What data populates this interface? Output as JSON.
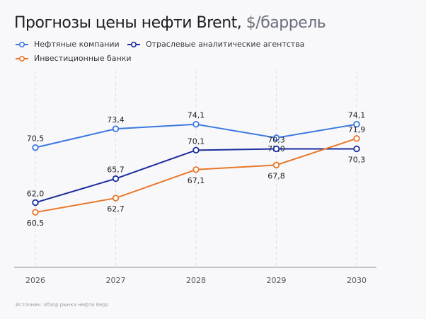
{
  "title": "Прогнозы цены нефти Brent,",
  "unit": "$/баррель",
  "source": "Источник: обзор рынка нефти Kepp",
  "chart_data": {
    "type": "line",
    "title": "Прогнозы цены нефти Brent, $/баррель",
    "categories": [
      "2026",
      "2027",
      "2028",
      "2029",
      "2030"
    ],
    "ylim": [
      52,
      78
    ],
    "grid": "vertical dashed",
    "legend_position": "top-left",
    "series": [
      {
        "name": "Нефтяные компании",
        "color": "#3b78e0",
        "values": [
          70.5,
          73.4,
          74.1,
          72.0,
          74.1
        ],
        "labels": [
          "70,5",
          "73,4",
          "74,1",
          "72,0",
          "74,1"
        ],
        "label_pos": [
          "above",
          "above",
          "above",
          "below",
          "above"
        ]
      },
      {
        "name": "Отраслевые аналитические агентства",
        "color": "#1a2d9c",
        "values": [
          62.0,
          65.7,
          70.1,
          70.3,
          70.3
        ],
        "labels": [
          "62,0",
          "65,7",
          "70,1",
          "70,3",
          "70,3"
        ],
        "label_pos": [
          "above",
          "above",
          "above",
          "above",
          "below"
        ]
      },
      {
        "name": "Инвестиционные банки",
        "color": "#e8782a",
        "values": [
          60.5,
          62.7,
          67.1,
          67.8,
          71.9
        ],
        "labels": [
          "60,5",
          "62,7",
          "67,1",
          "67,8",
          "71,9"
        ],
        "label_pos": [
          "below",
          "below",
          "below",
          "below",
          "above"
        ]
      }
    ]
  }
}
